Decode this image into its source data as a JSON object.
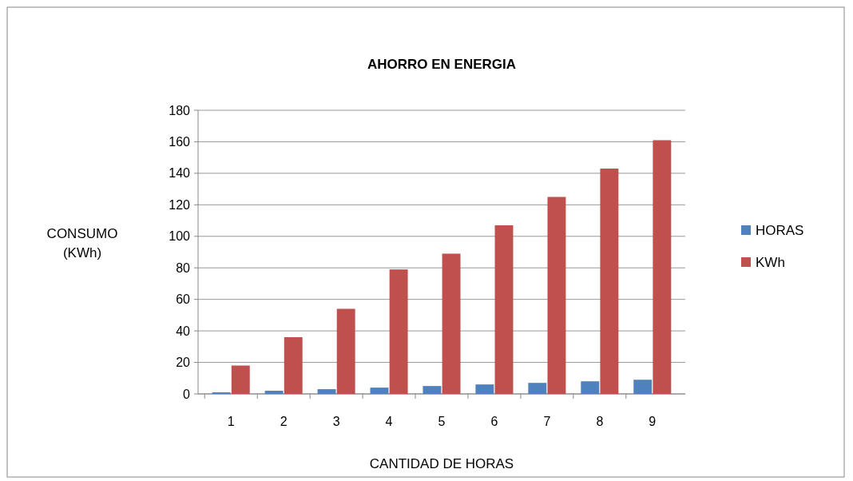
{
  "chart_data": {
    "type": "bar",
    "title": "AHORRO EN ENERGIA",
    "xlabel": "CANTIDAD DE HORAS",
    "ylabel": "CONSUMO\n(KWh)",
    "categories": [
      "1",
      "2",
      "3",
      "4",
      "5",
      "6",
      "7",
      "8",
      "9"
    ],
    "series": [
      {
        "name": "HORAS",
        "color": "#4f81bd",
        "values": [
          1,
          2,
          3,
          4,
          5,
          6,
          7,
          8,
          9
        ]
      },
      {
        "name": "KWh",
        "color": "#c0504d",
        "values": [
          18,
          36,
          54,
          79,
          89,
          107,
          125,
          143,
          161
        ]
      }
    ],
    "ylim": [
      0,
      180
    ],
    "yticks": [
      0,
      20,
      40,
      60,
      80,
      100,
      120,
      140,
      160,
      180
    ],
    "grid": "y",
    "legend": "right"
  }
}
